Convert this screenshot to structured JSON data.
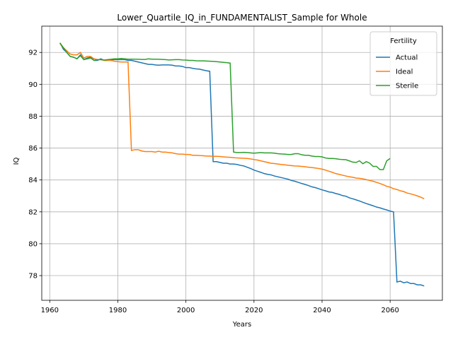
{
  "chart_data": {
    "type": "line",
    "title": "Lower_Quartile_IQ_in_FUNDAMENTALIST_Sample for Whole",
    "x_label": "Years",
    "y_label": "IQ",
    "legend_title": "Fertility",
    "legend_position": "upper right",
    "grid": true,
    "xlim": [
      1957.65,
      2075.35
    ],
    "xticks": [
      1960,
      1980,
      2000,
      2020,
      2040,
      2060
    ],
    "ylim": [
      76.45,
      93.65
    ],
    "yticks": [
      78,
      80,
      82,
      84,
      86,
      88,
      90,
      92
    ],
    "x": [
      1963,
      1964,
      1965,
      1966,
      1967,
      1968,
      1969,
      1970,
      1971,
      1972,
      1973,
      1974,
      1975,
      1976,
      1977,
      1978,
      1979,
      1980,
      1981,
      1982,
      1983,
      1984,
      1985,
      1986,
      1987,
      1988,
      1989,
      1990,
      1991,
      1992,
      1993,
      1994,
      1995,
      1996,
      1997,
      1998,
      1999,
      2000,
      2001,
      2002,
      2003,
      2004,
      2005,
      2006,
      2007,
      2008,
      2009,
      2010,
      2011,
      2012,
      2013,
      2014,
      2015,
      2016,
      2017,
      2018,
      2019,
      2020,
      2021,
      2022,
      2023,
      2024,
      2025,
      2026,
      2027,
      2028,
      2029,
      2030,
      2031,
      2032,
      2033,
      2034,
      2035,
      2036,
      2037,
      2038,
      2039,
      2040,
      2041,
      2042,
      2043,
      2044,
      2045,
      2046,
      2047,
      2048,
      2049,
      2050,
      2051,
      2052,
      2053,
      2054,
      2055,
      2056,
      2057,
      2058,
      2059,
      2060,
      2061,
      2062,
      2063,
      2064,
      2065,
      2066,
      2067,
      2068,
      2069,
      2070
    ],
    "series": [
      {
        "name": "Actual",
        "color": "#1f77b4",
        "values": [
          92.6,
          92.2,
          92.0,
          91.75,
          91.7,
          91.6,
          91.85,
          91.55,
          91.65,
          91.7,
          91.5,
          91.5,
          91.6,
          91.5,
          91.5,
          91.55,
          91.55,
          91.55,
          91.55,
          91.55,
          91.5,
          91.5,
          91.45,
          91.4,
          91.35,
          91.3,
          91.25,
          91.25,
          91.22,
          91.2,
          91.22,
          91.22,
          91.22,
          91.2,
          91.15,
          91.15,
          91.12,
          91.05,
          91.05,
          91.0,
          90.97,
          90.95,
          90.9,
          90.85,
          90.82,
          85.15,
          85.15,
          85.1,
          85.05,
          85.05,
          85.0,
          85.0,
          84.97,
          84.92,
          84.88,
          84.8,
          84.72,
          84.62,
          84.55,
          84.48,
          84.4,
          84.35,
          84.32,
          84.25,
          84.2,
          84.15,
          84.1,
          84.05,
          83.97,
          83.92,
          83.85,
          83.78,
          83.72,
          83.65,
          83.57,
          83.52,
          83.45,
          83.38,
          83.32,
          83.25,
          83.22,
          83.15,
          83.1,
          83.02,
          82.98,
          82.88,
          82.82,
          82.75,
          82.68,
          82.6,
          82.52,
          82.45,
          82.38,
          82.3,
          82.25,
          82.18,
          82.12,
          82.05,
          82.0,
          77.6,
          77.65,
          77.55,
          77.6,
          77.5,
          77.5,
          77.42,
          77.42,
          77.35
        ]
      },
      {
        "name": "Ideal",
        "color": "#ff7f0e",
        "values": [
          92.55,
          92.3,
          92.1,
          91.9,
          91.85,
          91.85,
          92.0,
          91.65,
          91.75,
          91.75,
          91.6,
          91.55,
          91.55,
          91.5,
          91.5,
          91.5,
          91.45,
          91.42,
          91.4,
          91.4,
          91.4,
          85.85,
          85.9,
          85.9,
          85.82,
          85.78,
          85.78,
          85.78,
          85.75,
          85.8,
          85.75,
          85.75,
          85.72,
          85.7,
          85.65,
          85.62,
          85.62,
          85.6,
          85.6,
          85.55,
          85.55,
          85.53,
          85.52,
          85.5,
          85.5,
          85.48,
          85.48,
          85.47,
          85.45,
          85.43,
          85.42,
          85.4,
          85.38,
          85.37,
          85.36,
          85.35,
          85.32,
          85.28,
          85.25,
          85.2,
          85.15,
          85.1,
          85.05,
          85.03,
          85.0,
          84.97,
          84.95,
          84.92,
          84.9,
          84.88,
          84.87,
          84.85,
          84.83,
          84.8,
          84.78,
          84.75,
          84.72,
          84.68,
          84.62,
          84.55,
          84.48,
          84.4,
          84.35,
          84.3,
          84.25,
          84.2,
          84.17,
          84.12,
          84.1,
          84.07,
          84.02,
          83.97,
          83.92,
          83.85,
          83.78,
          83.7,
          83.6,
          83.55,
          83.45,
          83.4,
          83.32,
          83.27,
          83.18,
          83.13,
          83.07,
          83.0,
          82.92,
          82.82
        ]
      },
      {
        "name": "Sterile",
        "color": "#2ca02c",
        "values": [
          92.6,
          92.3,
          92.0,
          91.75,
          91.7,
          91.6,
          91.8,
          91.55,
          91.6,
          91.65,
          91.5,
          91.55,
          91.55,
          91.52,
          91.55,
          91.57,
          91.6,
          91.6,
          91.62,
          91.6,
          91.58,
          91.58,
          91.58,
          91.57,
          91.56,
          91.56,
          91.6,
          91.58,
          91.58,
          91.57,
          91.56,
          91.55,
          91.53,
          91.54,
          91.55,
          91.55,
          91.53,
          91.52,
          91.5,
          91.5,
          91.48,
          91.47,
          91.47,
          91.46,
          91.45,
          91.44,
          91.42,
          91.4,
          91.38,
          91.36,
          91.33,
          85.75,
          85.72,
          85.72,
          85.73,
          85.72,
          85.7,
          85.68,
          85.7,
          85.72,
          85.7,
          85.7,
          85.7,
          85.68,
          85.65,
          85.63,
          85.62,
          85.6,
          85.6,
          85.65,
          85.65,
          85.58,
          85.55,
          85.55,
          85.5,
          85.47,
          85.47,
          85.45,
          85.38,
          85.35,
          85.35,
          85.33,
          85.3,
          85.28,
          85.27,
          85.2,
          85.12,
          85.1,
          85.2,
          85.02,
          85.15,
          85.05,
          84.85,
          84.85,
          84.65,
          84.65,
          85.2,
          85.35,
          null,
          null,
          null,
          null,
          null,
          null,
          null,
          null,
          null,
          null
        ]
      }
    ]
  }
}
